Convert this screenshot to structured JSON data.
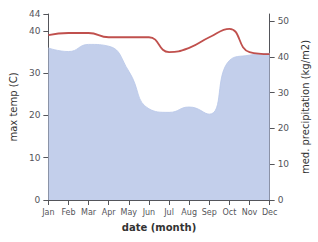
{
  "chart_data": {
    "type": "line",
    "xlabel": "date (month)",
    "ylabel": "max temp (C)",
    "y2label": "med. precipitation (kg/m2)",
    "categories": [
      "Jan",
      "Feb",
      "Mar",
      "Apr",
      "May",
      "Jun",
      "Jul",
      "Aug",
      "Sep",
      "Oct",
      "Nov",
      "Dec"
    ],
    "series": [
      {
        "type": "area",
        "axis": "y2",
        "color": "#b8c7e8",
        "values": [
          42.5,
          41.5,
          43.5,
          43.0,
          36.0,
          25.5,
          24.5,
          26.0,
          24.0,
          39.0,
          40.5,
          41.0
        ]
      },
      {
        "type": "line",
        "color": "#c0504d",
        "values": [
          39.0,
          39.5,
          39.5,
          38.5,
          38.5,
          38.5,
          35.0,
          36.0,
          38.5,
          40.5,
          35.0,
          34.5
        ]
      }
    ],
    "ylim": [
      0,
      44
    ],
    "yticks": [
      0,
      10,
      20,
      30,
      40
    ],
    "y2lim": [
      0,
      52
    ],
    "y2ticks": [
      0,
      10,
      20,
      30,
      40,
      50
    ],
    "grid": false
  }
}
